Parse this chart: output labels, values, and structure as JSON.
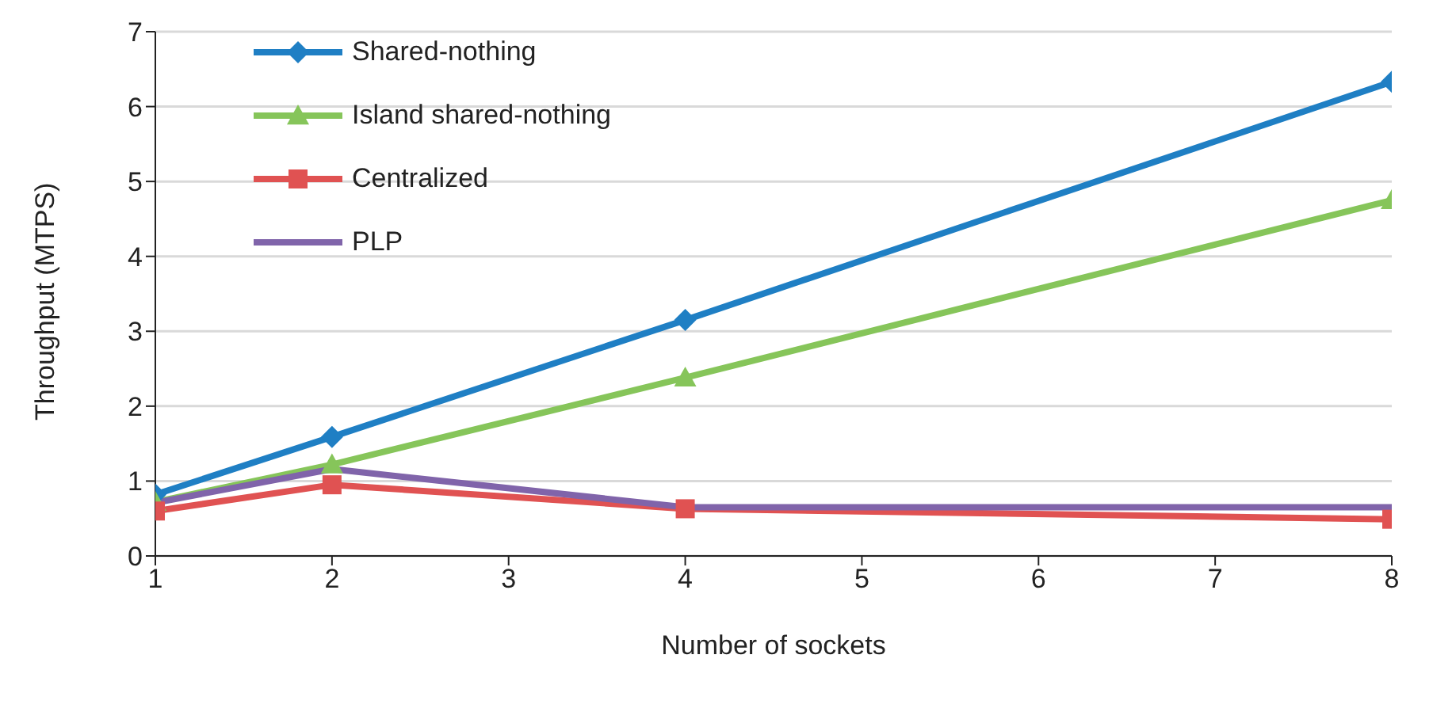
{
  "chart_data": {
    "type": "line",
    "xlabel": "Number of sockets",
    "ylabel": "Throughput (MTPS)",
    "x": [
      1,
      2,
      4,
      8
    ],
    "series": [
      {
        "name": "Shared-nothing",
        "color": "#1f7fc4",
        "values": [
          0.82,
          1.59,
          3.15,
          6.33
        ],
        "marker": "diamond"
      },
      {
        "name": "Island shared-nothing",
        "color": "#86c55a",
        "values": [
          0.72,
          1.22,
          2.38,
          4.75
        ],
        "marker": "triangle"
      },
      {
        "name": "Centralized",
        "color": "#e05252",
        "values": [
          0.6,
          0.95,
          0.63,
          0.49
        ],
        "marker": "square"
      },
      {
        "name": "PLP",
        "color": "#8064aa",
        "values": [
          0.71,
          1.16,
          0.65,
          0.65
        ],
        "marker": "none"
      }
    ],
    "xlim": [
      1,
      8
    ],
    "xticks": [
      1,
      2,
      3,
      4,
      5,
      6,
      7,
      8
    ],
    "ylim": [
      0,
      7
    ],
    "yticks": [
      0,
      1,
      2,
      3,
      4,
      5,
      6,
      7
    ],
    "grid": "y",
    "legend": "top left",
    "line_style": "solid"
  }
}
